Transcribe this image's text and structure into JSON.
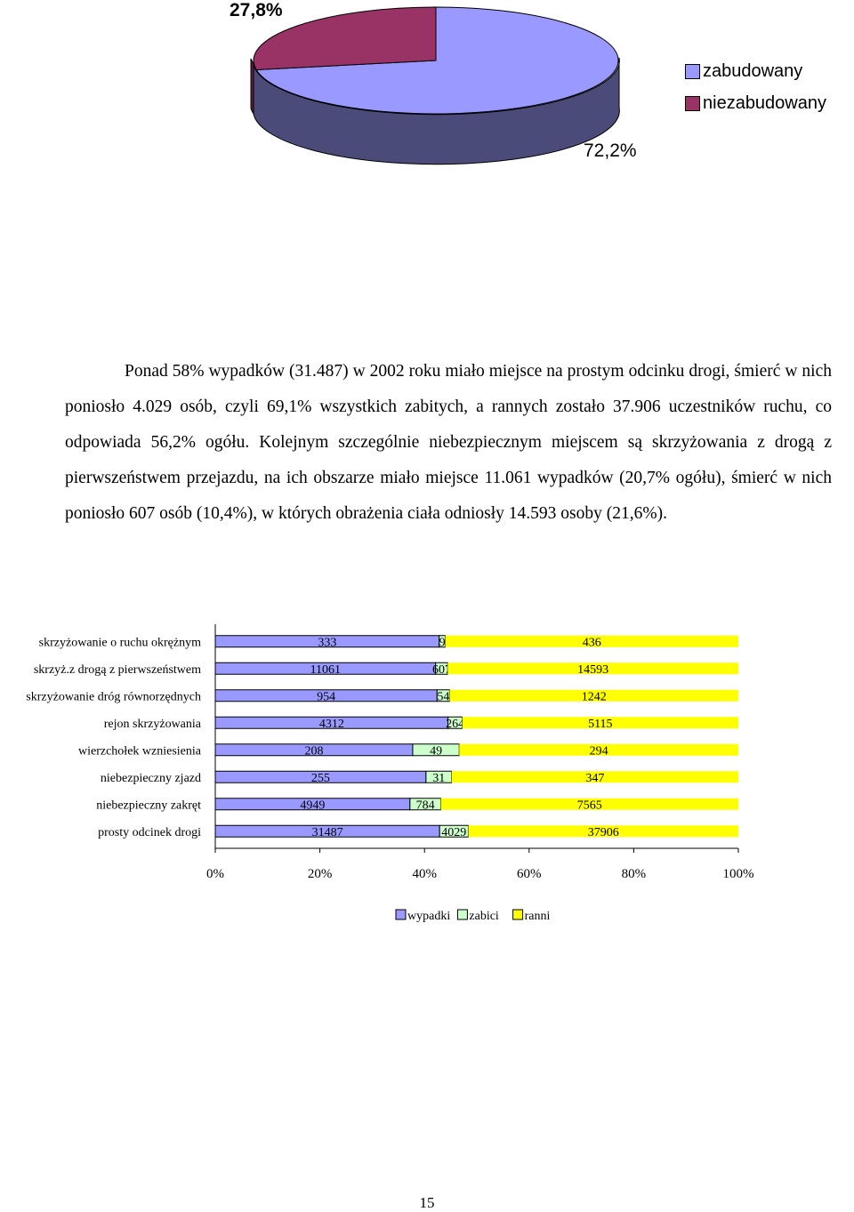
{
  "pie_chart": {
    "type": "pie",
    "categories": [
      "zabudowany",
      "niezabudowany"
    ],
    "values": [
      72.2,
      27.8
    ],
    "value_labels": [
      "72,2%",
      "27,8%"
    ],
    "colors": [
      "#9999ff",
      "#993366"
    ],
    "shade_colors": [
      "#4b4b7a",
      "#5e1f3d"
    ],
    "legend_position": "right"
  },
  "paragraph": "Ponad 58% wypadków (31.487) w 2002 roku miało miejsce na prostym odcinku drogi, śmierć w nich poniosło 4.029 osób, czyli 69,1% wszystkich zabitych, a rannych zostało 37.906 uczestników ruchu, co odpowiada 56,2% ogółu. Kolejnym szczególnie niebezpiecznym miejscem są skrzyżowania z drogą z pierwszeństwem przejazdu, na ich obszarze miało miejsce 11.061 wypadków (20,7% ogółu), śmierć w nich poniosło 607 osób (10,4%), w których obrażenia ciała odniosły 14.593 osoby (21,6%).",
  "chart_data": {
    "type": "bar",
    "orientation": "horizontal",
    "stacked": "percent",
    "categories": [
      "skrzyżowanie o ruchu okrężnym",
      "skrzyż.z drogą z pierwszeństwem",
      "skrzyżowanie dróg równorzędnych",
      "rejon skrzyżowania",
      "wierzchołek wzniesienia",
      "niebezpieczny zjazd",
      "niebezpieczny zakręt",
      "prosty odcinek drogi"
    ],
    "series": [
      {
        "name": "wypadki",
        "color": "#9999ff",
        "values": [
          333,
          11061,
          954,
          4312,
          208,
          255,
          4949,
          31487
        ]
      },
      {
        "name": "zabici",
        "color": "#ccffcc",
        "values": [
          9,
          607,
          54,
          264,
          49,
          31,
          784,
          4029
        ]
      },
      {
        "name": "ranni",
        "color": "#ffff00",
        "values": [
          436,
          14593,
          1242,
          5115,
          294,
          347,
          7565,
          37906
        ]
      }
    ],
    "x_ticks": [
      "0%",
      "20%",
      "40%",
      "60%",
      "80%",
      "100%"
    ],
    "legend_position": "bottom",
    "grid": false
  },
  "page_number": "15"
}
